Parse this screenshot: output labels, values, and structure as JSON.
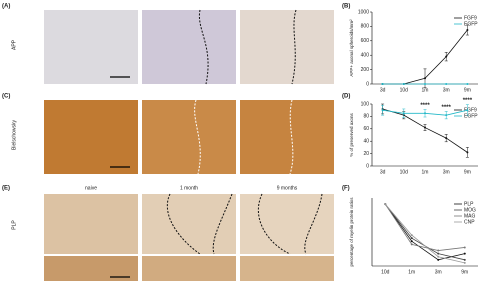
{
  "panel_labels": [
    "(A)",
    "(B)",
    "(C)",
    "(D)",
    "(E)",
    "(F)"
  ],
  "image_labels": {
    "app_row": "APP",
    "bielschowsky_row": "Bielschowsky",
    "plp_row": "PLP",
    "plp_columns": [
      "naive",
      "1 month",
      "9 months"
    ]
  },
  "chart_data": [
    {
      "type": "line",
      "y_label": "APP+ axonal spheroids/mm²",
      "categories": [
        "3d",
        "10d",
        "1m",
        "3m",
        "9m"
      ],
      "ylim": [
        0,
        1000
      ],
      "yticks": [
        0,
        200,
        400,
        600,
        800,
        1000
      ],
      "series": [
        {
          "name": "FGF9",
          "color": "#111111",
          "values": [
            0,
            0,
            80,
            380,
            750
          ],
          "errors": [
            0,
            0,
            130,
            60,
            70
          ]
        },
        {
          "name": "EGFP",
          "color": "#22b8c8",
          "values": [
            0,
            0,
            0,
            0,
            0
          ],
          "errors": [
            0,
            0,
            0,
            0,
            0
          ]
        }
      ]
    },
    {
      "type": "line",
      "y_label": "% of preserved axons",
      "categories": [
        "3d",
        "10d",
        "1m",
        "3m",
        "9m"
      ],
      "ylim": [
        0,
        100
      ],
      "yticks": [
        0,
        20,
        40,
        60,
        80,
        100
      ],
      "series": [
        {
          "name": "FGF9",
          "color": "#111111",
          "values": [
            92,
            82,
            62,
            45,
            22
          ],
          "errors": [
            8,
            6,
            5,
            6,
            8
          ]
        },
        {
          "name": "EGFP",
          "color": "#22b8c8",
          "values": [
            90,
            85,
            85,
            82,
            90
          ],
          "errors": [
            8,
            7,
            6,
            6,
            9
          ]
        }
      ],
      "annotations": [
        {
          "text": "****",
          "category": "1m"
        },
        {
          "text": "****",
          "category": "3m"
        },
        {
          "text": "****",
          "category": "9m"
        }
      ]
    },
    {
      "type": "line",
      "y_label": "percentage of myelin protein ratios",
      "categories": [
        "10d",
        "1m",
        "3m",
        "9m"
      ],
      "ylim": [
        0,
        110
      ],
      "series": [
        {
          "name": "PLP",
          "color": "#111111",
          "values": [
            100,
            40,
            10,
            20
          ]
        },
        {
          "name": "MOG",
          "color": "#444444",
          "values": [
            100,
            45,
            20,
            10
          ]
        },
        {
          "name": "MAG",
          "color": "#777777",
          "values": [
            100,
            35,
            25,
            30
          ]
        },
        {
          "name": "CNP",
          "color": "#999999",
          "values": [
            100,
            50,
            15,
            5
          ]
        }
      ]
    }
  ]
}
